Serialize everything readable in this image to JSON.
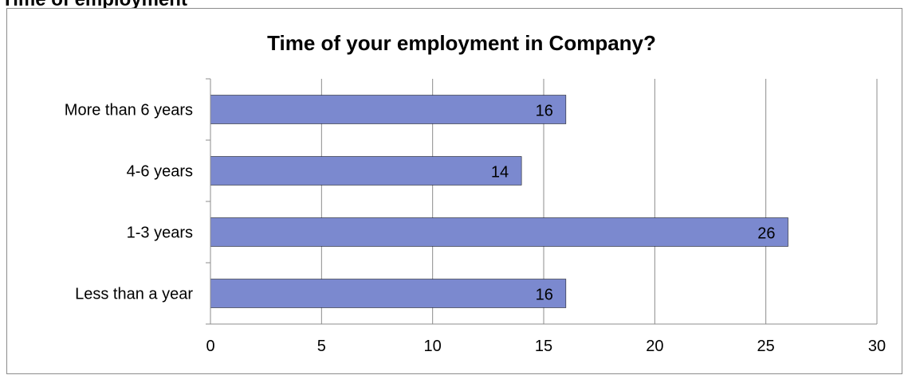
{
  "page": {
    "section_heading": "Time of employment"
  },
  "chart_data": {
    "type": "bar",
    "orientation": "horizontal",
    "title": "Time of your employment in Company?",
    "categories": [
      "More than 6 years",
      "4-6 years",
      "1-3 years",
      "Less than a year"
    ],
    "values": [
      16,
      14,
      26,
      16
    ],
    "xlabel": "",
    "ylabel": "",
    "xlim": [
      0,
      30
    ],
    "xticks": [
      0,
      5,
      10,
      15,
      20,
      25,
      30
    ],
    "grid": true,
    "legend": "none",
    "bar_color": "#7b89cf",
    "bar_border_color": "#000000",
    "grid_color": "#8c8c8c"
  }
}
